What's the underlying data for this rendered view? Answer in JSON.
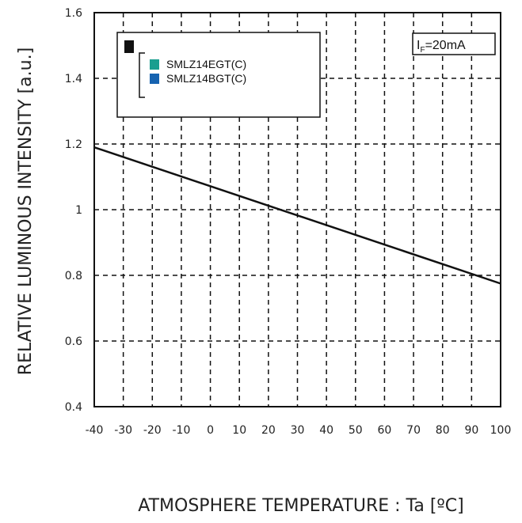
{
  "chart_data": {
    "type": "line",
    "xlabel": "ATMOSPHERE TEMPERATURE : Ta [ºC]",
    "ylabel": "RELATIVE LUMINOUS INTENSITY [a.u.]",
    "xlim": [
      -40,
      100
    ],
    "ylim": [
      0.4,
      1.6
    ],
    "x_ticks": [
      -40,
      -30,
      -20,
      -10,
      0,
      10,
      20,
      30,
      40,
      50,
      60,
      70,
      80,
      90,
      100
    ],
    "y_ticks": [
      0.4,
      0.6,
      0.8,
      1,
      1.2,
      1.4,
      1.6
    ],
    "x_tick_labels": [
      "-40",
      "-30",
      "-20",
      "-10",
      "0",
      "10",
      "20",
      "30",
      "40",
      "50",
      "60",
      "70",
      "80",
      "90",
      "100"
    ],
    "y_tick_labels": [
      "0.4",
      "0.6",
      "0.8",
      "1",
      "1.2",
      "1.4",
      "1.6"
    ],
    "grid": true,
    "legend_placement": "top-left",
    "legend": [
      {
        "label": "SMLZ14EGT(C)",
        "color": "#1a9e8f"
      },
      {
        "label": "SMLZ14BGT(C)",
        "color": "#1663b0"
      }
    ],
    "condition_label": "IF=20mA",
    "condition": {
      "main": "I",
      "sub": "F",
      "rest": "=20mA"
    },
    "series": [
      {
        "color": "#111111",
        "x": [
          -40,
          100
        ],
        "y": [
          1.19,
          0.775
        ]
      }
    ]
  }
}
